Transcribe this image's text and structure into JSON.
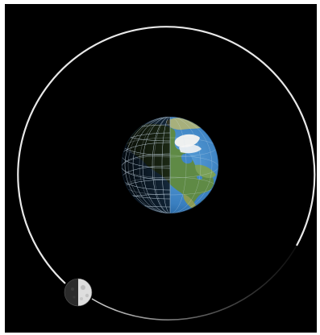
{
  "colors": {
    "background": "#000000",
    "orbit": "#e6e6e6",
    "ocean": "#3f86c6",
    "land": "#5f8a45",
    "ice": "#f2f2f2",
    "night": "#0c0f14",
    "moon_lit": "#e2e2e2",
    "moon_dark": "#2a2a2a",
    "grid": "#d8e6f2"
  },
  "icons": {
    "earth": "earth-globe-icon",
    "moon": "moon-icon"
  }
}
